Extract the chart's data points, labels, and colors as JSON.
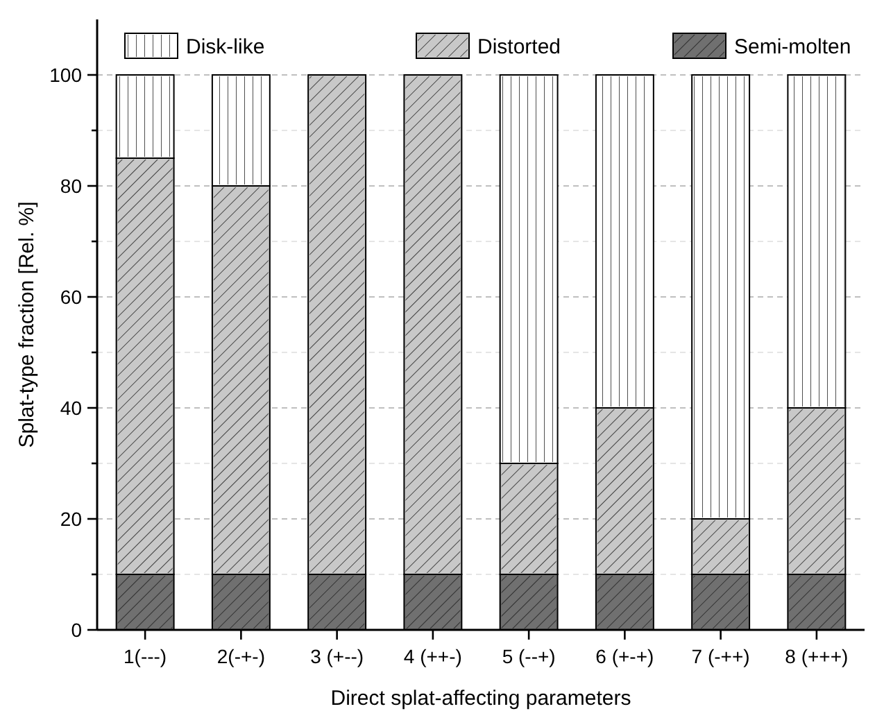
{
  "chart_data": {
    "type": "bar",
    "stacked": true,
    "xlabel": "Direct splat-affecting parameters",
    "ylabel": "Splat-type fraction [Rel. %]",
    "categories": [
      "1(---)",
      "2(-+-)",
      "3 (+--)",
      "4 (++-)",
      "5 (--+)",
      "6 (+-+)",
      "7 (-++)",
      "8 (+++)"
    ],
    "series": [
      {
        "name": "Semi-molten",
        "color": "#707070",
        "values": [
          10,
          10,
          10,
          10,
          10,
          10,
          10,
          10
        ]
      },
      {
        "name": "Distorted",
        "color": "#c8c8c8",
        "values": [
          75,
          70,
          90,
          90,
          20,
          30,
          10,
          30
        ]
      },
      {
        "name": "Disk-like",
        "color": "#ffffff",
        "values": [
          15,
          20,
          0,
          0,
          70,
          60,
          80,
          60
        ]
      }
    ],
    "ylim": [
      0,
      110
    ],
    "yticks": [
      0,
      {
        "value": 10,
        "label": null
      },
      20,
      {
        "value": 30,
        "label": null
      },
      40,
      {
        "value": 50,
        "label": null
      },
      60,
      {
        "value": 70,
        "label": null
      },
      80,
      {
        "value": 90,
        "label": null
      },
      100
    ],
    "grid": "y",
    "legend": "top"
  }
}
